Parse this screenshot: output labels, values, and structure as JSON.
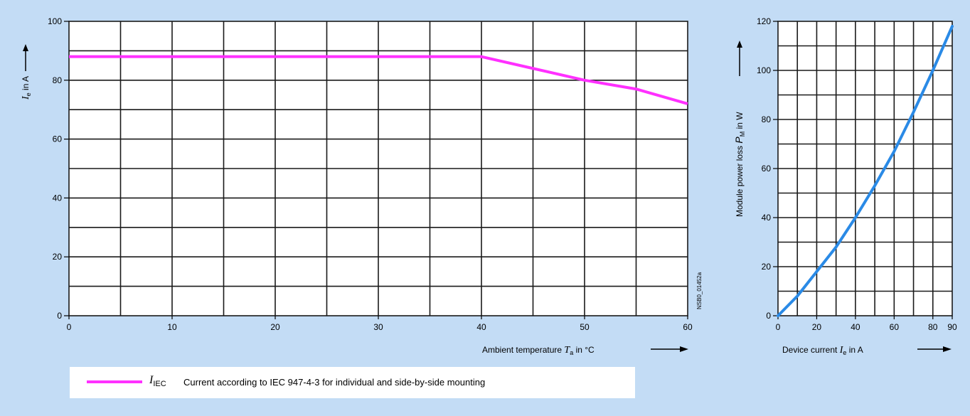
{
  "chart_data": [
    {
      "type": "line",
      "xlabel": "Ambient temperature",
      "xlabel_symbol": "T",
      "xlabel_symbol_sub": "a",
      "xlabel_unit": "in °C",
      "ylabel_symbol": "I",
      "ylabel_symbol_sub": "e",
      "ylabel_unit": "in A",
      "xlim": [
        0,
        60
      ],
      "ylim": [
        0,
        100
      ],
      "x_ticks": [
        "0",
        "10",
        "20",
        "30",
        "40",
        "50",
        "60"
      ],
      "y_ticks": [
        "0",
        "20",
        "40",
        "60",
        "80",
        "100"
      ],
      "grid": true,
      "series": [
        {
          "name": "I_IEC",
          "color": "#ff30ff",
          "x": [
            0,
            40,
            45,
            50,
            55,
            60
          ],
          "y": [
            88,
            88,
            84,
            80,
            77,
            72
          ]
        }
      ],
      "annotation": "NSB0_01452a"
    },
    {
      "type": "line",
      "xlabel": "Device current",
      "xlabel_symbol": "I",
      "xlabel_symbol_sub": "e",
      "xlabel_unit": "in A",
      "ylabel": "Module power loss",
      "ylabel_symbol": "P",
      "ylabel_symbol_sub": "M",
      "ylabel_unit": "in W",
      "xlim": [
        0,
        90
      ],
      "ylim": [
        0,
        120
      ],
      "x_ticks": [
        "0",
        "20",
        "40",
        "60",
        "80",
        "90"
      ],
      "x_tick_values": [
        0,
        20,
        40,
        60,
        80,
        90
      ],
      "y_ticks": [
        "0",
        "20",
        "40",
        "60",
        "80",
        "100",
        "120"
      ],
      "grid": true,
      "series": [
        {
          "color": "#2a8ae6",
          "x": [
            0,
            10,
            20,
            30,
            40,
            50,
            60,
            70,
            80,
            90
          ],
          "y": [
            0,
            8,
            18,
            28,
            40,
            53,
            67,
            83,
            100,
            118
          ]
        }
      ]
    }
  ],
  "legend": {
    "symbol": "I",
    "symbol_sub": "IEC",
    "text": "Current according to IEC 947-4-3 for individual and side-by-side mounting"
  }
}
